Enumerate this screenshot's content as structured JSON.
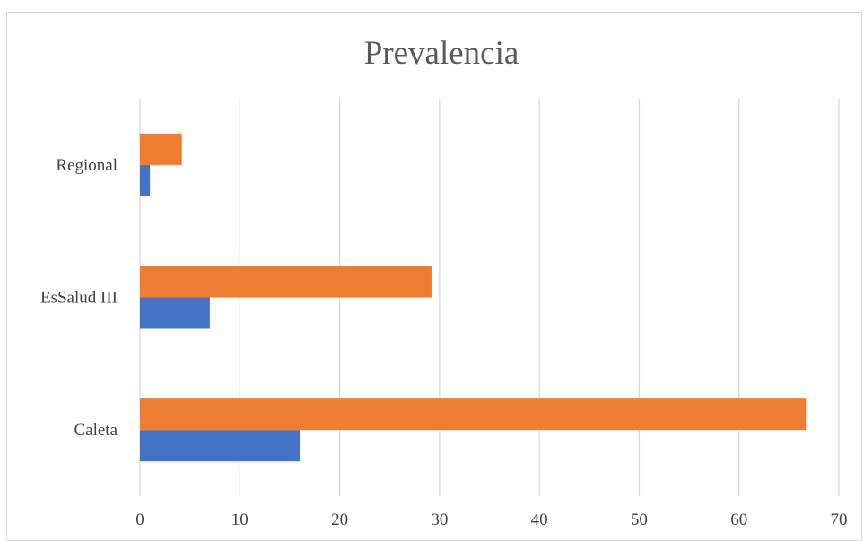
{
  "chart_data": {
    "type": "bar",
    "orientation": "horizontal",
    "title": "Prevalencia",
    "xlabel": "",
    "ylabel": "",
    "categories": [
      "Caleta",
      "EsSalud III",
      "Regional"
    ],
    "series": [
      {
        "values": [
          16,
          7,
          1
        ],
        "color": "#4472c4"
      },
      {
        "values": [
          66.7,
          29.2,
          4.2
        ],
        "color": "#ed7d31"
      }
    ],
    "xlim": [
      0,
      70
    ],
    "xticks": [
      "0",
      "10",
      "20",
      "30",
      "40",
      "50",
      "60",
      "70"
    ],
    "grid": true,
    "legend": "none"
  }
}
